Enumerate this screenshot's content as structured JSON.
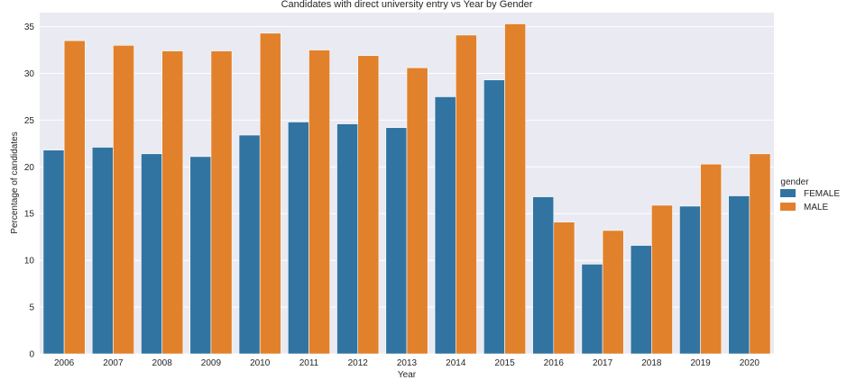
{
  "chart_data": {
    "type": "bar",
    "title": "Candidates with direct university entry vs Year by Gender",
    "xlabel": "Year",
    "ylabel": "Percentage of candidates",
    "categories": [
      "2006",
      "2007",
      "2008",
      "2009",
      "2010",
      "2011",
      "2012",
      "2013",
      "2014",
      "2015",
      "2016",
      "2017",
      "2018",
      "2019",
      "2020"
    ],
    "series": [
      {
        "name": "FEMALE",
        "color": "#3274a1",
        "values": [
          21.8,
          22.1,
          21.4,
          21.1,
          23.4,
          24.8,
          24.6,
          24.2,
          27.5,
          29.3,
          16.8,
          9.6,
          11.6,
          15.8,
          16.9
        ]
      },
      {
        "name": "MALE",
        "color": "#e1812c",
        "values": [
          33.5,
          33.0,
          32.4,
          32.4,
          34.3,
          32.5,
          31.9,
          30.6,
          34.1,
          35.3,
          14.1,
          13.2,
          15.9,
          20.3,
          21.4
        ]
      }
    ],
    "ylim": [
      0,
      36.5
    ],
    "yticks": [
      "0",
      "5",
      "10",
      "15",
      "20",
      "25",
      "30",
      "35"
    ],
    "grid": true,
    "legend": {
      "title": "gender",
      "placement": "right"
    },
    "background": "#eaeaf2"
  }
}
